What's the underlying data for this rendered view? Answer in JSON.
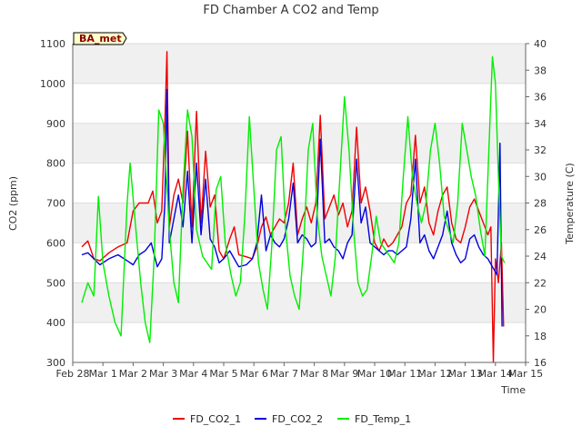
{
  "chart_data": {
    "type": "line",
    "title": "FD Chamber A CO2 and Temp",
    "xlabel": "Time",
    "ylabel": "CO2 (ppm)",
    "y2label": "Temperature (C)",
    "site_label": "BA_met",
    "x_ticks": [
      "Feb 28",
      "Mar 1",
      "Mar 2",
      "Mar 3",
      "Mar 4",
      "Mar 5",
      "Mar 6",
      "Mar 7",
      "Mar 8",
      "Mar 9",
      "Mar 10",
      "Mar 11",
      "Mar 12",
      "Mar 13",
      "Mar 14",
      "Mar 15"
    ],
    "xlim_days": [
      0,
      15
    ],
    "ylim": [
      300,
      1100
    ],
    "y_ticks": [
      300,
      400,
      500,
      600,
      700,
      800,
      900,
      1000,
      1100
    ],
    "y2lim": [
      16,
      40
    ],
    "y2_ticks": [
      16,
      18,
      20,
      22,
      24,
      26,
      28,
      30,
      32,
      34,
      36,
      38,
      40
    ],
    "grid": true,
    "legend_position": "bottom-center",
    "series": [
      {
        "name": "FD_CO2_1",
        "axis": "left",
        "color": "#ee0000",
        "points": [
          [
            0.3,
            590
          ],
          [
            0.5,
            605
          ],
          [
            0.7,
            560
          ],
          [
            0.9,
            555
          ],
          [
            1.2,
            575
          ],
          [
            1.5,
            590
          ],
          [
            1.8,
            600
          ],
          [
            2.0,
            680
          ],
          [
            2.2,
            700
          ],
          [
            2.5,
            700
          ],
          [
            2.65,
            730
          ],
          [
            2.8,
            650
          ],
          [
            2.95,
            680
          ],
          [
            3.05,
            900
          ],
          [
            3.12,
            1080
          ],
          [
            3.2,
            640
          ],
          [
            3.35,
            720
          ],
          [
            3.5,
            760
          ],
          [
            3.65,
            700
          ],
          [
            3.8,
            880
          ],
          [
            3.95,
            640
          ],
          [
            4.1,
            930
          ],
          [
            4.25,
            650
          ],
          [
            4.4,
            830
          ],
          [
            4.55,
            690
          ],
          [
            4.7,
            720
          ],
          [
            4.85,
            580
          ],
          [
            5.0,
            560
          ],
          [
            5.2,
            610
          ],
          [
            5.35,
            640
          ],
          [
            5.5,
            570
          ],
          [
            5.75,
            565
          ],
          [
            5.95,
            560
          ],
          [
            6.1,
            590
          ],
          [
            6.25,
            640
          ],
          [
            6.4,
            665
          ],
          [
            6.55,
            620
          ],
          [
            6.7,
            640
          ],
          [
            6.85,
            660
          ],
          [
            7.0,
            650
          ],
          [
            7.15,
            700
          ],
          [
            7.3,
            800
          ],
          [
            7.45,
            620
          ],
          [
            7.6,
            660
          ],
          [
            7.75,
            690
          ],
          [
            7.9,
            650
          ],
          [
            8.05,
            700
          ],
          [
            8.2,
            920
          ],
          [
            8.35,
            660
          ],
          [
            8.5,
            690
          ],
          [
            8.65,
            720
          ],
          [
            8.8,
            670
          ],
          [
            8.95,
            700
          ],
          [
            9.1,
            640
          ],
          [
            9.25,
            680
          ],
          [
            9.4,
            890
          ],
          [
            9.55,
            700
          ],
          [
            9.7,
            740
          ],
          [
            9.85,
            680
          ],
          [
            10.0,
            600
          ],
          [
            10.15,
            580
          ],
          [
            10.3,
            610
          ],
          [
            10.45,
            590
          ],
          [
            10.6,
            600
          ],
          [
            10.75,
            620
          ],
          [
            10.9,
            640
          ],
          [
            11.05,
            700
          ],
          [
            11.2,
            720
          ],
          [
            11.35,
            870
          ],
          [
            11.5,
            700
          ],
          [
            11.65,
            740
          ],
          [
            11.8,
            650
          ],
          [
            11.95,
            620
          ],
          [
            12.1,
            680
          ],
          [
            12.25,
            720
          ],
          [
            12.4,
            740
          ],
          [
            12.55,
            650
          ],
          [
            12.7,
            610
          ],
          [
            12.85,
            600
          ],
          [
            13.0,
            640
          ],
          [
            13.15,
            690
          ],
          [
            13.3,
            710
          ],
          [
            13.45,
            680
          ],
          [
            13.6,
            650
          ],
          [
            13.75,
            620
          ],
          [
            13.85,
            640
          ],
          [
            13.93,
            300
          ],
          [
            14.0,
            560
          ],
          [
            14.1,
            500
          ],
          [
            14.2,
            600
          ],
          [
            14.27,
            390
          ]
        ]
      },
      {
        "name": "FD_CO2_2",
        "axis": "left",
        "color": "#0000dd",
        "points": [
          [
            0.3,
            570
          ],
          [
            0.5,
            575
          ],
          [
            0.7,
            560
          ],
          [
            0.9,
            545
          ],
          [
            1.2,
            560
          ],
          [
            1.5,
            570
          ],
          [
            1.8,
            555
          ],
          [
            2.0,
            545
          ],
          [
            2.2,
            570
          ],
          [
            2.4,
            580
          ],
          [
            2.6,
            600
          ],
          [
            2.8,
            540
          ],
          [
            2.95,
            560
          ],
          [
            3.05,
            700
          ],
          [
            3.12,
            985
          ],
          [
            3.2,
            600
          ],
          [
            3.35,
            660
          ],
          [
            3.5,
            720
          ],
          [
            3.65,
            640
          ],
          [
            3.8,
            780
          ],
          [
            3.95,
            600
          ],
          [
            4.1,
            800
          ],
          [
            4.25,
            620
          ],
          [
            4.4,
            760
          ],
          [
            4.55,
            610
          ],
          [
            4.7,
            590
          ],
          [
            4.85,
            550
          ],
          [
            5.0,
            560
          ],
          [
            5.2,
            580
          ],
          [
            5.35,
            560
          ],
          [
            5.5,
            540
          ],
          [
            5.75,
            545
          ],
          [
            5.95,
            560
          ],
          [
            6.1,
            600
          ],
          [
            6.25,
            720
          ],
          [
            6.4,
            580
          ],
          [
            6.55,
            620
          ],
          [
            6.7,
            600
          ],
          [
            6.85,
            590
          ],
          [
            7.0,
            610
          ],
          [
            7.15,
            660
          ],
          [
            7.3,
            750
          ],
          [
            7.45,
            600
          ],
          [
            7.6,
            620
          ],
          [
            7.75,
            610
          ],
          [
            7.9,
            590
          ],
          [
            8.05,
            600
          ],
          [
            8.2,
            860
          ],
          [
            8.35,
            600
          ],
          [
            8.5,
            610
          ],
          [
            8.65,
            590
          ],
          [
            8.8,
            580
          ],
          [
            8.95,
            560
          ],
          [
            9.1,
            600
          ],
          [
            9.25,
            620
          ],
          [
            9.4,
            810
          ],
          [
            9.55,
            650
          ],
          [
            9.7,
            690
          ],
          [
            9.85,
            600
          ],
          [
            10.0,
            590
          ],
          [
            10.15,
            580
          ],
          [
            10.3,
            570
          ],
          [
            10.45,
            580
          ],
          [
            10.6,
            580
          ],
          [
            10.75,
            570
          ],
          [
            10.9,
            580
          ],
          [
            11.05,
            590
          ],
          [
            11.2,
            660
          ],
          [
            11.35,
            810
          ],
          [
            11.5,
            600
          ],
          [
            11.65,
            620
          ],
          [
            11.8,
            580
          ],
          [
            11.95,
            560
          ],
          [
            12.1,
            590
          ],
          [
            12.25,
            620
          ],
          [
            12.4,
            680
          ],
          [
            12.55,
            600
          ],
          [
            12.7,
            570
          ],
          [
            12.85,
            550
          ],
          [
            13.0,
            560
          ],
          [
            13.15,
            610
          ],
          [
            13.3,
            620
          ],
          [
            13.45,
            590
          ],
          [
            13.6,
            570
          ],
          [
            13.75,
            560
          ],
          [
            13.9,
            540
          ],
          [
            14.05,
            520
          ],
          [
            14.15,
            850
          ],
          [
            14.22,
            390
          ]
        ]
      },
      {
        "name": "FD_Temp_1",
        "axis": "right",
        "color": "#00ee00",
        "points": [
          [
            0.3,
            20.5
          ],
          [
            0.5,
            22.0
          ],
          [
            0.7,
            21.0
          ],
          [
            0.85,
            28.5
          ],
          [
            1.0,
            23.5
          ],
          [
            1.2,
            21.0
          ],
          [
            1.4,
            19.0
          ],
          [
            1.6,
            18.0
          ],
          [
            1.8,
            28.0
          ],
          [
            1.9,
            31.0
          ],
          [
            2.05,
            27.0
          ],
          [
            2.25,
            22.0
          ],
          [
            2.4,
            19.0
          ],
          [
            2.55,
            17.5
          ],
          [
            2.7,
            24.0
          ],
          [
            2.85,
            35.0
          ],
          [
            3.0,
            34.0
          ],
          [
            3.2,
            26.0
          ],
          [
            3.35,
            22.0
          ],
          [
            3.5,
            20.5
          ],
          [
            3.65,
            29.0
          ],
          [
            3.8,
            35.0
          ],
          [
            3.95,
            33.0
          ],
          [
            4.1,
            26.0
          ],
          [
            4.3,
            24.0
          ],
          [
            4.45,
            23.5
          ],
          [
            4.6,
            23.0
          ],
          [
            4.75,
            29.0
          ],
          [
            4.9,
            30.0
          ],
          [
            5.05,
            25.0
          ],
          [
            5.25,
            22.5
          ],
          [
            5.4,
            21.0
          ],
          [
            5.55,
            22.0
          ],
          [
            5.7,
            27.0
          ],
          [
            5.85,
            34.5
          ],
          [
            6.0,
            29.0
          ],
          [
            6.15,
            23.5
          ],
          [
            6.3,
            21.5
          ],
          [
            6.45,
            20.0
          ],
          [
            6.6,
            25.0
          ],
          [
            6.75,
            32.0
          ],
          [
            6.9,
            33.0
          ],
          [
            7.05,
            26.0
          ],
          [
            7.2,
            22.5
          ],
          [
            7.35,
            21.0
          ],
          [
            7.5,
            20.0
          ],
          [
            7.65,
            25.0
          ],
          [
            7.8,
            32.0
          ],
          [
            7.95,
            34.0
          ],
          [
            8.1,
            27.0
          ],
          [
            8.25,
            24.0
          ],
          [
            8.4,
            22.5
          ],
          [
            8.55,
            21.0
          ],
          [
            8.7,
            24.0
          ],
          [
            8.85,
            30.0
          ],
          [
            9.0,
            36.0
          ],
          [
            9.15,
            32.0
          ],
          [
            9.3,
            26.0
          ],
          [
            9.45,
            22.0
          ],
          [
            9.6,
            21.0
          ],
          [
            9.75,
            21.5
          ],
          [
            9.9,
            24.0
          ],
          [
            10.05,
            27.0
          ],
          [
            10.2,
            25.0
          ],
          [
            10.35,
            24.5
          ],
          [
            10.5,
            24.0
          ],
          [
            10.65,
            23.5
          ],
          [
            10.8,
            25.0
          ],
          [
            10.95,
            30.0
          ],
          [
            11.1,
            34.5
          ],
          [
            11.25,
            30.0
          ],
          [
            11.4,
            28.0
          ],
          [
            11.55,
            26.5
          ],
          [
            11.7,
            28.0
          ],
          [
            11.85,
            32.0
          ],
          [
            12.0,
            34.0
          ],
          [
            12.15,
            31.0
          ],
          [
            12.3,
            27.0
          ],
          [
            12.45,
            26.0
          ],
          [
            12.6,
            25.0
          ],
          [
            12.75,
            28.0
          ],
          [
            12.9,
            34.0
          ],
          [
            13.05,
            32.0
          ],
          [
            13.2,
            30.0
          ],
          [
            13.35,
            28.5
          ],
          [
            13.5,
            26.0
          ],
          [
            13.65,
            24.0
          ],
          [
            13.75,
            30.0
          ],
          [
            13.85,
            36.0
          ],
          [
            13.9,
            39.0
          ],
          [
            14.0,
            37.0
          ],
          [
            14.1,
            30.0
          ],
          [
            14.2,
            24.0
          ],
          [
            14.3,
            23.5
          ]
        ]
      }
    ]
  }
}
